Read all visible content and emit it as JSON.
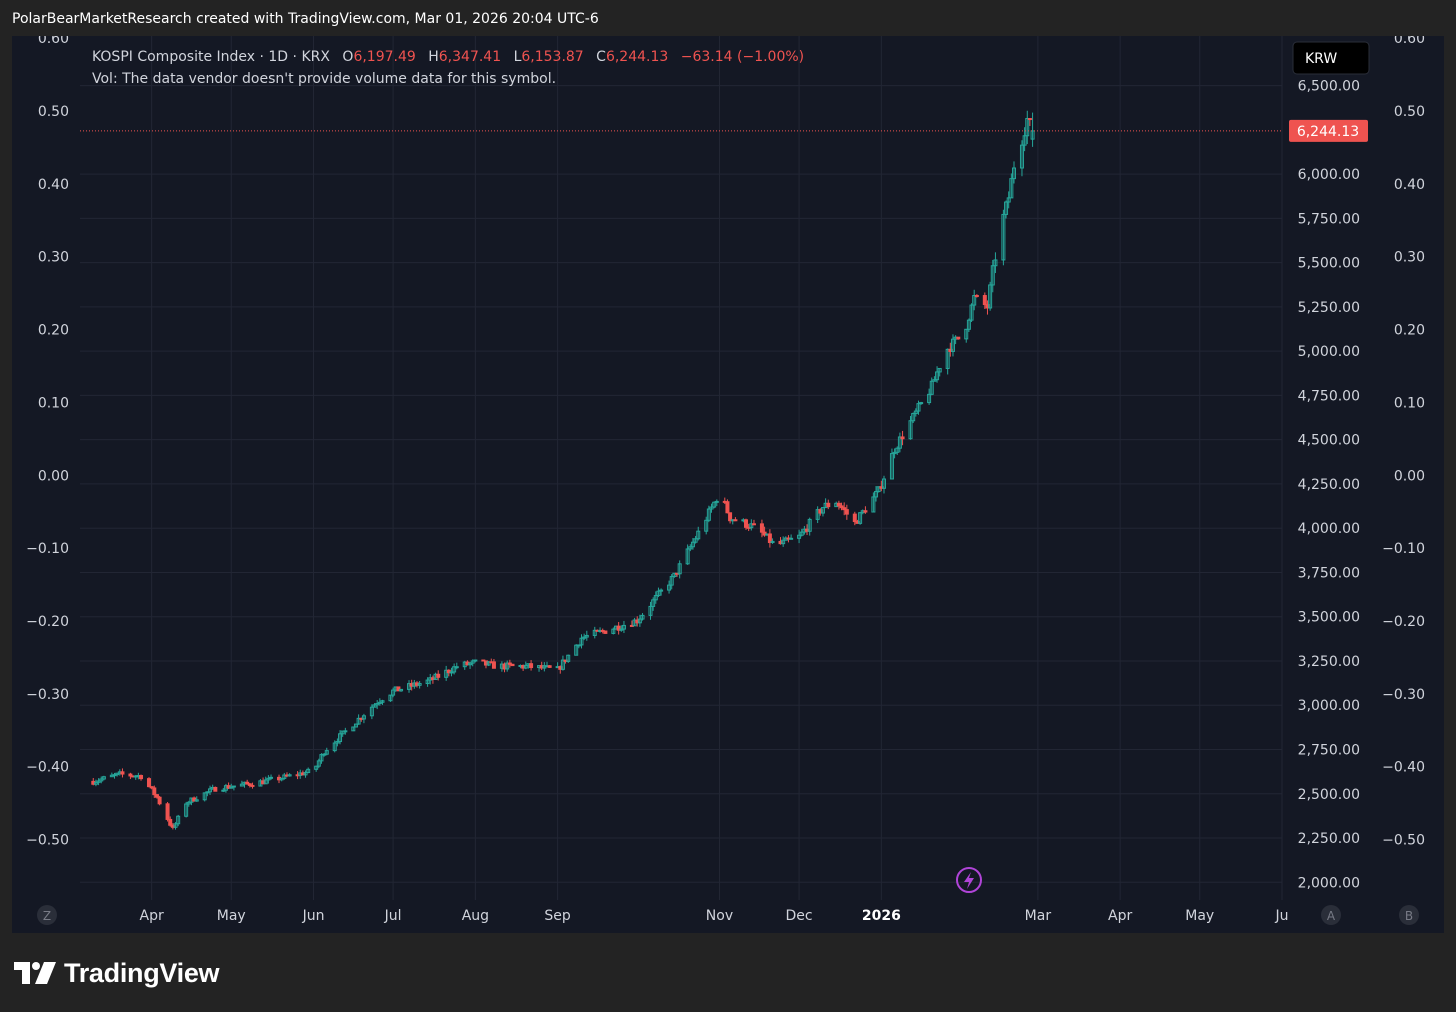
{
  "header": {
    "attribution": "PolarBearMarketResearch created with TradingView.com, Mar 01, 2026 20:04 UTC-6"
  },
  "legend": {
    "symbol": "KOSPI Composite Index · 1D · KRX",
    "o_label": "O",
    "o_value": "6,197.49",
    "h_label": "H",
    "h_value": "6,347.41",
    "l_label": "L",
    "l_value": "6,153.87",
    "c_label": "C",
    "c_value": "6,244.13",
    "change": "−63.14 (−1.00%)",
    "vol_note": "Vol: The data vendor doesn't provide volume data for this symbol."
  },
  "currency_label": "KRW",
  "last_price_label": "6,244.13",
  "scale_buttons": {
    "left": "Z",
    "auto": "A",
    "right": "B"
  },
  "brand": {
    "name": "TradingView"
  },
  "colors": {
    "bg": "#232323",
    "chart_bg": "#141824",
    "grid": "#222634",
    "up": "#26a69a",
    "down": "#ef5350",
    "text": "#d1d4dc",
    "lightning": "#b044d8"
  },
  "chart_data": {
    "type": "candlestick",
    "ylim_price": [
      1900,
      6780
    ],
    "ylim_secondary": [
      -0.583,
      0.603
    ],
    "price_ticks": [
      {
        "value": 2000,
        "label": "2,000.00"
      },
      {
        "value": 2250,
        "label": "2,250.00"
      },
      {
        "value": 2500,
        "label": "2,500.00"
      },
      {
        "value": 2750,
        "label": "2,750.00"
      },
      {
        "value": 3000,
        "label": "3,000.00"
      },
      {
        "value": 3250,
        "label": "3,250.00"
      },
      {
        "value": 3500,
        "label": "3,500.00"
      },
      {
        "value": 3750,
        "label": "3,750.00"
      },
      {
        "value": 4000,
        "label": "4,000.00"
      },
      {
        "value": 4250,
        "label": "4,250.00"
      },
      {
        "value": 4500,
        "label": "4,500.00"
      },
      {
        "value": 4750,
        "label": "4,750.00"
      },
      {
        "value": 5000,
        "label": "5,000.00"
      },
      {
        "value": 5250,
        "label": "5,250.00"
      },
      {
        "value": 5500,
        "label": "5,500.00"
      },
      {
        "value": 5750,
        "label": "5,750.00"
      },
      {
        "value": 6000,
        "label": "6,000.00"
      },
      {
        "value": 6500,
        "label": "6,500.00"
      }
    ],
    "secondary_ticks": [
      {
        "value": 0.6,
        "label": "0.60"
      },
      {
        "value": 0.5,
        "label": "0.50"
      },
      {
        "value": 0.4,
        "label": "0.40"
      },
      {
        "value": 0.3,
        "label": "0.30"
      },
      {
        "value": 0.2,
        "label": "0.20"
      },
      {
        "value": 0.1,
        "label": "0.10"
      },
      {
        "value": 0.0,
        "label": "0.00"
      },
      {
        "value": -0.1,
        "label": "−0.10"
      },
      {
        "value": -0.2,
        "label": "−0.20"
      },
      {
        "value": -0.3,
        "label": "−0.30"
      },
      {
        "value": -0.4,
        "label": "−0.40"
      },
      {
        "value": -0.5,
        "label": "−0.50"
      }
    ],
    "x_ticks": [
      {
        "date": "2025-04-01",
        "label": "Apr",
        "bold": false
      },
      {
        "date": "2025-05-01",
        "label": "May",
        "bold": false
      },
      {
        "date": "2025-06-01",
        "label": "Jun",
        "bold": false
      },
      {
        "date": "2025-07-01",
        "label": "Jul",
        "bold": false
      },
      {
        "date": "2025-08-01",
        "label": "Aug",
        "bold": false
      },
      {
        "date": "2025-09-01",
        "label": "Sep",
        "bold": false
      },
      {
        "date": "2025-11-01",
        "label": "Nov",
        "bold": false
      },
      {
        "date": "2025-12-01",
        "label": "Dec",
        "bold": false
      },
      {
        "date": "2026-01-01",
        "label": "2026",
        "bold": true
      },
      {
        "date": "2026-03-01",
        "label": "Mar",
        "bold": false
      },
      {
        "date": "2026-04-01",
        "label": "Apr",
        "bold": false
      },
      {
        "date": "2026-05-01",
        "label": "May",
        "bold": false
      },
      {
        "date": "2026-06-01",
        "label": "Ju",
        "bold": false
      }
    ],
    "x_range": [
      "2025-03-05",
      "2026-06-01"
    ],
    "last_price": 6244.13,
    "series_close": [
      [
        "2025-03-10",
        2570
      ],
      [
        "2025-03-20",
        2610
      ],
      [
        "2025-03-28",
        2600
      ],
      [
        "2025-04-03",
        2480
      ],
      [
        "2025-04-09",
        2300
      ],
      [
        "2025-04-14",
        2450
      ],
      [
        "2025-04-25",
        2530
      ],
      [
        "2025-05-10",
        2560
      ],
      [
        "2025-05-20",
        2590
      ],
      [
        "2025-06-01",
        2630
      ],
      [
        "2025-06-05",
        2740
      ],
      [
        "2025-06-15",
        2880
      ],
      [
        "2025-06-25",
        3020
      ],
      [
        "2025-07-01",
        3080
      ],
      [
        "2025-07-15",
        3140
      ],
      [
        "2025-07-25",
        3220
      ],
      [
        "2025-08-01",
        3240
      ],
      [
        "2025-08-10",
        3220
      ],
      [
        "2025-08-20",
        3220
      ],
      [
        "2025-09-01",
        3200
      ],
      [
        "2025-09-10",
        3380
      ],
      [
        "2025-09-25",
        3450
      ],
      [
        "2025-10-01",
        3480
      ],
      [
        "2025-10-15",
        3730
      ],
      [
        "2025-10-25",
        4000
      ],
      [
        "2025-11-01",
        4200
      ],
      [
        "2025-11-05",
        4060
      ],
      [
        "2025-11-15",
        4000
      ],
      [
        "2025-11-22",
        3900
      ],
      [
        "2025-12-01",
        3950
      ],
      [
        "2025-12-10",
        4120
      ],
      [
        "2025-12-15",
        4150
      ],
      [
        "2025-12-22",
        4030
      ],
      [
        "2025-12-31",
        4210
      ],
      [
        "2026-01-06",
        4450
      ],
      [
        "2026-01-12",
        4600
      ],
      [
        "2026-01-20",
        4800
      ],
      [
        "2026-01-25",
        5000
      ],
      [
        "2026-02-01",
        5100
      ],
      [
        "2026-02-05",
        5300
      ],
      [
        "2026-02-10",
        5250
      ],
      [
        "2026-02-12",
        5450
      ],
      [
        "2026-02-15",
        5700
      ],
      [
        "2026-02-18",
        5870
      ],
      [
        "2026-02-20",
        6050
      ],
      [
        "2026-02-23",
        6200
      ],
      [
        "2026-02-25",
        6310
      ],
      [
        "2026-02-27",
        6244
      ]
    ]
  }
}
